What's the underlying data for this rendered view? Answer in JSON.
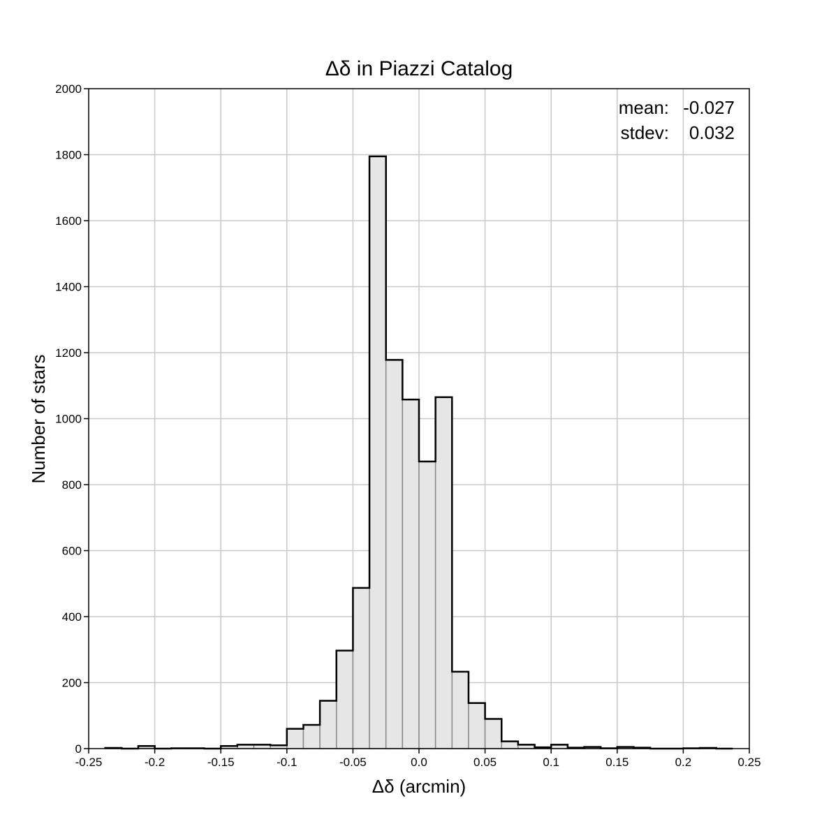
{
  "chart_data": {
    "type": "bar",
    "title": "Δδ in Piazzi Catalog",
    "xlabel": "Δδ (arcmin)",
    "ylabel": "Number of stars",
    "xlim": [
      -0.25,
      0.25
    ],
    "ylim": [
      0,
      2000
    ],
    "bin_width": 0.0125,
    "bin_start": -0.2375,
    "values": [
      2,
      0,
      8,
      0,
      1,
      1,
      0,
      8,
      12,
      12,
      10,
      60,
      72,
      145,
      297,
      487,
      1795,
      1178,
      1058,
      870,
      1065,
      233,
      138,
      90,
      22,
      12,
      4,
      12,
      3,
      5,
      1,
      5,
      3,
      0,
      0,
      1,
      2,
      0
    ],
    "x_ticks": [
      -0.25,
      -0.2,
      -0.15,
      -0.1,
      -0.05,
      0.0,
      0.05,
      0.1,
      0.15,
      0.2,
      0.25
    ],
    "x_tick_labels": [
      "-0.25",
      "-0.2",
      "-0.15",
      "-0.1",
      "-0.05",
      "0.0",
      "0.05",
      "0.1",
      "0.15",
      "0.2",
      "0.25"
    ],
    "y_ticks": [
      0,
      200,
      400,
      600,
      800,
      1000,
      1200,
      1400,
      1600,
      1800,
      2000
    ],
    "y_tick_labels": [
      "0",
      "200",
      "400",
      "600",
      "800",
      "1000",
      "1200",
      "1400",
      "1600",
      "1800",
      "2000"
    ],
    "grid": true,
    "stats": {
      "mean_label": "mean:",
      "mean_value": "-0.027",
      "stdev_label": "stdev:",
      "stdev_value": "0.032",
      "placement": "top-right"
    }
  }
}
